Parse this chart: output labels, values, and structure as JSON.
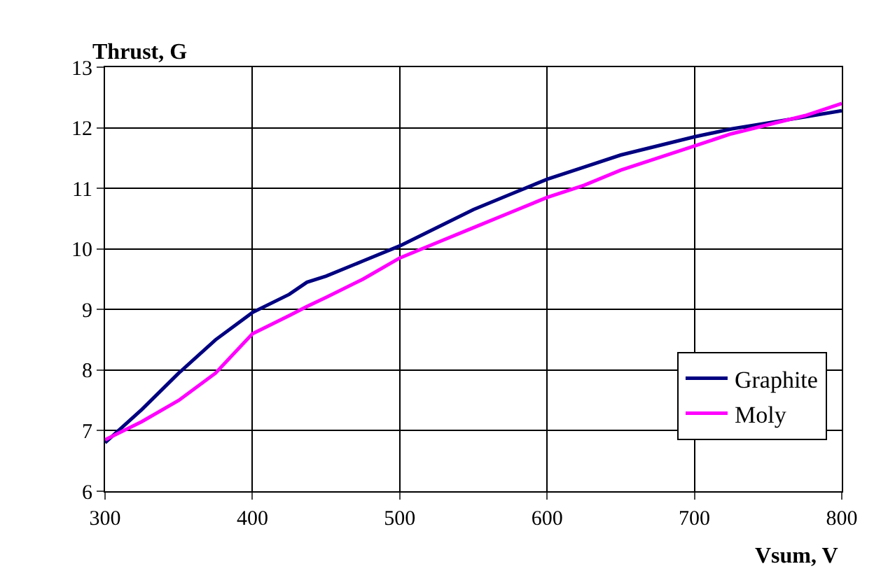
{
  "chart_data": {
    "type": "line",
    "ylabel": "Thrust, G",
    "xlabel": "Vsum, V",
    "x": [
      300,
      325,
      350,
      375,
      400,
      425,
      437,
      450,
      475,
      500,
      525,
      550,
      575,
      600,
      625,
      650,
      675,
      700,
      725,
      750,
      775,
      800
    ],
    "series": [
      {
        "name": "Graphite",
        "color": "#000080",
        "values": [
          6.8,
          7.35,
          7.95,
          8.5,
          8.95,
          9.25,
          9.45,
          9.55,
          9.8,
          10.05,
          10.35,
          10.65,
          10.9,
          11.15,
          11.35,
          11.55,
          11.7,
          11.85,
          11.98,
          12.08,
          12.18,
          12.28
        ]
      },
      {
        "name": "Moly",
        "color": "#ff00ff",
        "values": [
          6.85,
          7.15,
          7.5,
          7.95,
          8.6,
          8.9,
          9.05,
          9.2,
          9.5,
          9.85,
          10.1,
          10.35,
          10.6,
          10.85,
          11.05,
          11.3,
          11.5,
          11.7,
          11.9,
          12.05,
          12.2,
          12.4
        ]
      }
    ],
    "xlim": [
      300,
      800
    ],
    "xticks": [
      300,
      400,
      500,
      600,
      700,
      800
    ],
    "ylim": [
      6,
      13
    ],
    "yticks": [
      6,
      7,
      8,
      9,
      10,
      11,
      12,
      13
    ],
    "grid": true,
    "legend": "bottom right",
    "marker": "none",
    "line_style": "solid"
  }
}
